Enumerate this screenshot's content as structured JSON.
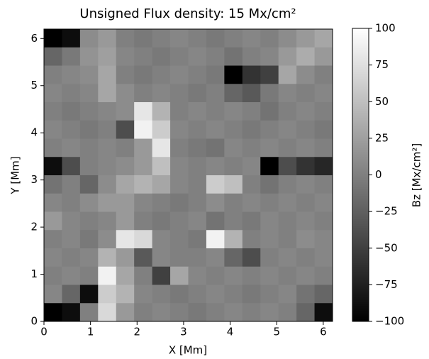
{
  "chart_data": {
    "type": "heatmap",
    "title": "Unsigned Flux density: 15 Mx/cm²",
    "x_label": "X [Mm]",
    "y_label": "Y [Mm]",
    "colorbar_label": "Bz [Mx/cm²]",
    "xlim": [
      0,
      6.2
    ],
    "ylim": [
      0,
      6.2
    ],
    "xticks": [
      0,
      1,
      2,
      3,
      4,
      5,
      6
    ],
    "yticks": [
      0,
      1,
      2,
      3,
      4,
      5,
      6
    ],
    "clim": [
      -100,
      100
    ],
    "cticks": [
      100,
      75,
      50,
      25,
      0,
      {
        "value": -25,
        "label": "−25"
      },
      {
        "value": -50,
        "label": "−50"
      },
      {
        "value": -75,
        "label": "−75"
      },
      {
        "value": -100,
        "label": "−100"
      }
    ],
    "colormap": "gray",
    "z": [
      [
        -100,
        -90,
        10,
        20,
        0,
        -5,
        0,
        5,
        0,
        -5,
        0,
        5,
        0,
        10,
        20,
        30
      ],
      [
        -20,
        -5,
        15,
        25,
        5,
        0,
        -5,
        0,
        5,
        0,
        -10,
        0,
        5,
        20,
        35,
        20
      ],
      [
        0,
        5,
        10,
        30,
        0,
        -5,
        0,
        5,
        0,
        -5,
        -100,
        -60,
        -50,
        30,
        10,
        0
      ],
      [
        5,
        0,
        5,
        30,
        10,
        0,
        5,
        0,
        -5,
        0,
        -20,
        -30,
        -5,
        5,
        0,
        5
      ],
      [
        0,
        -5,
        0,
        5,
        10,
        80,
        40,
        0,
        5,
        0,
        5,
        0,
        -10,
        0,
        5,
        0
      ],
      [
        5,
        0,
        -5,
        0,
        -40,
        90,
        60,
        5,
        0,
        5,
        0,
        -5,
        0,
        5,
        0,
        -5
      ],
      [
        0,
        5,
        0,
        5,
        0,
        20,
        80,
        0,
        -5,
        -10,
        5,
        0,
        5,
        0,
        5,
        0
      ],
      [
        -90,
        -40,
        0,
        5,
        10,
        20,
        50,
        5,
        0,
        5,
        0,
        5,
        -100,
        -40,
        -60,
        -70
      ],
      [
        -10,
        0,
        -20,
        10,
        30,
        40,
        30,
        5,
        0,
        60,
        50,
        0,
        -10,
        0,
        5,
        0
      ],
      [
        5,
        0,
        10,
        20,
        20,
        5,
        0,
        -5,
        0,
        10,
        0,
        5,
        0,
        5,
        0,
        5
      ],
      [
        20,
        5,
        0,
        5,
        20,
        0,
        -5,
        0,
        5,
        -10,
        0,
        -5,
        5,
        0,
        5,
        0
      ],
      [
        0,
        5,
        -5,
        10,
        80,
        70,
        5,
        0,
        -5,
        90,
        40,
        0,
        5,
        0,
        10,
        5
      ],
      [
        5,
        0,
        5,
        40,
        20,
        -30,
        5,
        0,
        0,
        5,
        -20,
        -40,
        0,
        5,
        0,
        5
      ],
      [
        0,
        5,
        0,
        90,
        30,
        0,
        -50,
        30,
        5,
        0,
        5,
        0,
        5,
        0,
        5,
        0
      ],
      [
        5,
        -20,
        -90,
        60,
        40,
        5,
        0,
        -5,
        0,
        5,
        0,
        -5,
        0,
        5,
        -10,
        -20
      ],
      [
        -100,
        -90,
        0,
        70,
        20,
        0,
        5,
        0,
        -5,
        0,
        5,
        0,
        5,
        0,
        -20,
        -90
      ]
    ]
  }
}
